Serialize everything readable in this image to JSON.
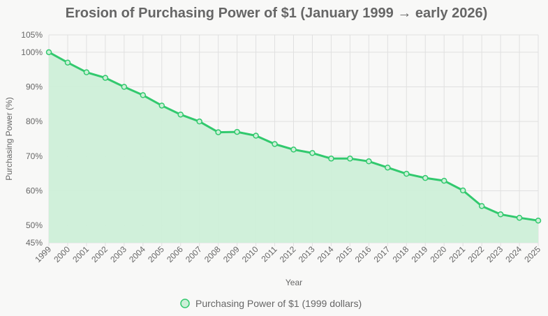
{
  "chart_data": {
    "type": "line",
    "title": "Erosion of Purchasing Power of $1 (January 1999 → early 2026)",
    "xlabel": "Year",
    "ylabel": "Purchasing Power (%)",
    "categories": [
      "1999",
      "2000",
      "2001",
      "2002",
      "2003",
      "2004",
      "2005",
      "2006",
      "2007",
      "2008",
      "2009",
      "2010",
      "2011",
      "2012",
      "2013",
      "2014",
      "2015",
      "2016",
      "2017",
      "2018",
      "2019",
      "2020",
      "2021",
      "2022",
      "2023",
      "2024",
      "2025"
    ],
    "series": [
      {
        "name": "Purchasing Power of $1 (1999 dollars)",
        "values": [
          100,
          97,
          94.2,
          92.6,
          90,
          87.6,
          84.6,
          82,
          80,
          76.9,
          77,
          75.9,
          73.5,
          71.9,
          70.9,
          69.3,
          69.3,
          68.5,
          66.7,
          64.9,
          63.7,
          62.9,
          60.1,
          55.6,
          53.2,
          52.2,
          51.4
        ]
      }
    ],
    "ylim": [
      45,
      105
    ],
    "yticks": [
      "105%",
      "100%",
      "90%",
      "80%",
      "70%",
      "60%",
      "50%",
      "45%"
    ],
    "grid": true,
    "legend_position": "bottom",
    "colors": {
      "line": "#32c96e",
      "fill": "#cdefd8",
      "grid": "#e0e0e0",
      "text": "#666666"
    }
  }
}
